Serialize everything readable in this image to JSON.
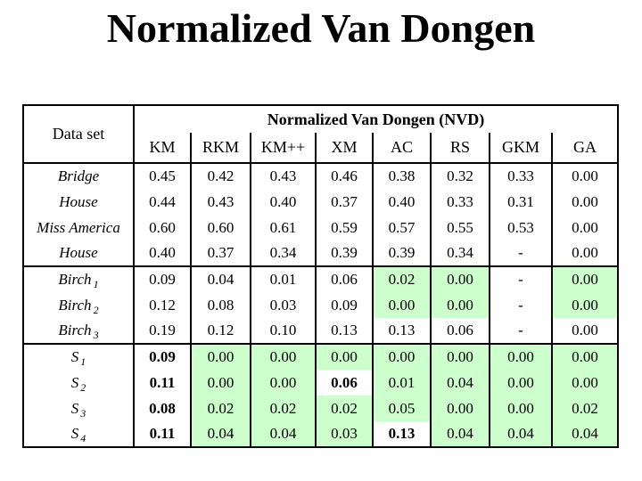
{
  "slide": {
    "title": "Normalized Van Dongen"
  },
  "table": {
    "corner_header": "Data set",
    "group_header": "Normalized Van Dongen (NVD)",
    "columns": [
      "KM",
      "RKM",
      "KM++",
      "XM",
      "AC",
      "RS",
      "GKM",
      "GA"
    ],
    "highlight_color": "#ccffcc",
    "rows": [
      {
        "label": "Bridge",
        "sub": "",
        "group_start": false,
        "cells": [
          {
            "v": "0.45"
          },
          {
            "v": "0.42"
          },
          {
            "v": "0.43"
          },
          {
            "v": "0.46"
          },
          {
            "v": "0.38"
          },
          {
            "v": "0.32"
          },
          {
            "v": "0.33"
          },
          {
            "v": "0.00"
          }
        ]
      },
      {
        "label": "House",
        "sub": "",
        "group_start": false,
        "cells": [
          {
            "v": "0.44"
          },
          {
            "v": "0.43"
          },
          {
            "v": "0.40"
          },
          {
            "v": "0.37"
          },
          {
            "v": "0.40"
          },
          {
            "v": "0.33"
          },
          {
            "v": "0.31"
          },
          {
            "v": "0.00"
          }
        ]
      },
      {
        "label": "Miss America",
        "sub": "",
        "group_start": false,
        "cells": [
          {
            "v": "0.60"
          },
          {
            "v": "0.60"
          },
          {
            "v": "0.61"
          },
          {
            "v": "0.59"
          },
          {
            "v": "0.57"
          },
          {
            "v": "0.55"
          },
          {
            "v": "0.53"
          },
          {
            "v": "0.00"
          }
        ]
      },
      {
        "label": "House",
        "sub": "",
        "group_start": false,
        "cells": [
          {
            "v": "0.40"
          },
          {
            "v": "0.37"
          },
          {
            "v": "0.34"
          },
          {
            "v": "0.39"
          },
          {
            "v": "0.39"
          },
          {
            "v": "0.34"
          },
          {
            "v": "-"
          },
          {
            "v": "0.00"
          }
        ]
      },
      {
        "label": "Birch",
        "sub": "1",
        "group_start": true,
        "cells": [
          {
            "v": "0.09"
          },
          {
            "v": "0.04"
          },
          {
            "v": "0.01"
          },
          {
            "v": "0.06"
          },
          {
            "v": "0.02",
            "hl": true
          },
          {
            "v": "0.00",
            "hl": true
          },
          {
            "v": "-"
          },
          {
            "v": "0.00",
            "hl": true
          }
        ]
      },
      {
        "label": "Birch",
        "sub": "2",
        "group_start": false,
        "cells": [
          {
            "v": "0.12"
          },
          {
            "v": "0.08"
          },
          {
            "v": "0.03"
          },
          {
            "v": "0.09"
          },
          {
            "v": "0.00",
            "hl": true
          },
          {
            "v": "0.00",
            "hl": true
          },
          {
            "v": "-"
          },
          {
            "v": "0.00",
            "hl": true
          }
        ]
      },
      {
        "label": "Birch",
        "sub": "3",
        "group_start": false,
        "cells": [
          {
            "v": "0.19"
          },
          {
            "v": "0.12"
          },
          {
            "v": "0.10"
          },
          {
            "v": "0.13"
          },
          {
            "v": "0.13"
          },
          {
            "v": "0.06"
          },
          {
            "v": "-"
          },
          {
            "v": "0.00"
          }
        ]
      },
      {
        "label": "S",
        "sub": "1",
        "group_start": true,
        "cells": [
          {
            "v": "0.09",
            "b": true
          },
          {
            "v": "0.00",
            "hl": true
          },
          {
            "v": "0.00",
            "hl": true
          },
          {
            "v": "0.00",
            "hl": true
          },
          {
            "v": "0.00",
            "hl": true
          },
          {
            "v": "0.00",
            "hl": true
          },
          {
            "v": "0.00",
            "hl": true
          },
          {
            "v": "0.00",
            "hl": true
          }
        ]
      },
      {
        "label": "S",
        "sub": "2",
        "group_start": false,
        "cells": [
          {
            "v": "0.11",
            "b": true
          },
          {
            "v": "0.00",
            "hl": true
          },
          {
            "v": "0.00",
            "hl": true
          },
          {
            "v": "0.06",
            "b": true
          },
          {
            "v": "0.01",
            "hl": true
          },
          {
            "v": "0.04",
            "hl": true
          },
          {
            "v": "0.00",
            "hl": true
          },
          {
            "v": "0.00",
            "hl": true
          }
        ]
      },
      {
        "label": "S",
        "sub": "3",
        "group_start": false,
        "cells": [
          {
            "v": "0.08",
            "b": true
          },
          {
            "v": "0.02",
            "hl": true
          },
          {
            "v": "0.02",
            "hl": true
          },
          {
            "v": "0.02",
            "hl": true
          },
          {
            "v": "0.05",
            "hl": true
          },
          {
            "v": "0.00",
            "hl": true
          },
          {
            "v": "0.00",
            "hl": true
          },
          {
            "v": "0.02",
            "hl": true
          }
        ]
      },
      {
        "label": "S",
        "sub": "4",
        "group_start": false,
        "cells": [
          {
            "v": "0.11",
            "b": true
          },
          {
            "v": "0.04",
            "hl": true
          },
          {
            "v": "0.04",
            "hl": true
          },
          {
            "v": "0.03",
            "hl": true
          },
          {
            "v": "0.13",
            "b": true
          },
          {
            "v": "0.04",
            "hl": true
          },
          {
            "v": "0.04",
            "hl": true
          },
          {
            "v": "0.04",
            "hl": true
          }
        ]
      }
    ]
  }
}
